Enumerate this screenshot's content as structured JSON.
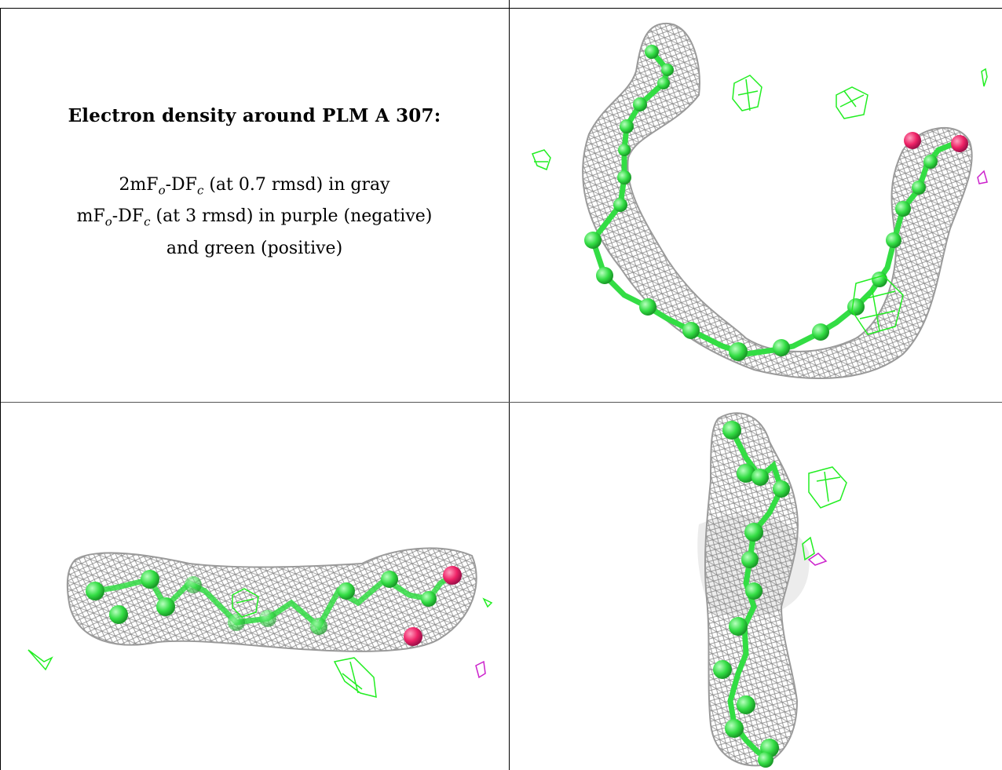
{
  "caption": {
    "title": "Electron density around PLM A 307:",
    "line1": "2mF",
    "line1_sub1": "o",
    "line1_mid": "-DF",
    "line1_sub2": "c",
    "line1_end": " (at 0.7 rmsd) in gray",
    "line2": "mF",
    "line2_sub1": "o",
    "line2_mid": "-DF",
    "line2_sub2": "c",
    "line2_end": " (at 3 rmsd) in purple (negative)",
    "line3": "and green (positive)"
  },
  "colors": {
    "mesh_gray": "#9a9a9a",
    "atom_green": "#33dd44",
    "oxygen_pink": "#ee2266",
    "positive_green": "#22ee22",
    "negative_purple": "#cc22cc"
  },
  "panels": [
    {
      "name": "view-top-right"
    },
    {
      "name": "view-bottom-left"
    },
    {
      "name": "view-bottom-right"
    }
  ]
}
